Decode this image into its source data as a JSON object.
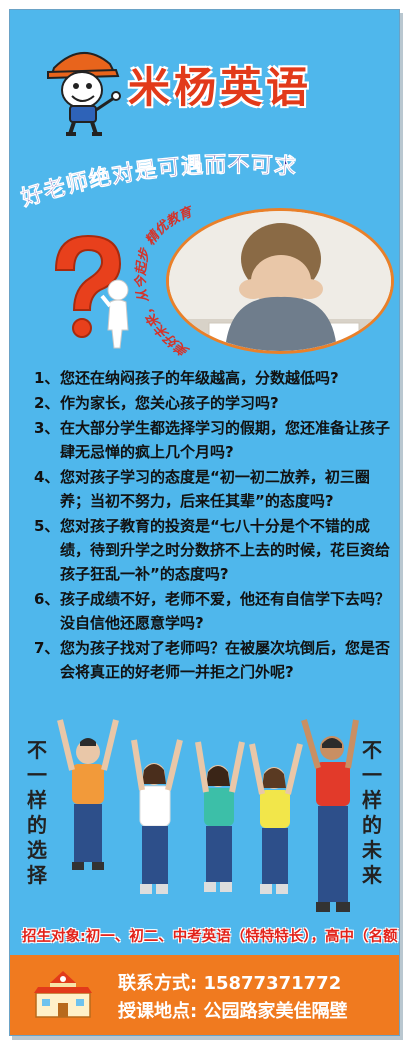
{
  "brand": "米杨英语",
  "slogan": "好老师绝对是可遇而不可求",
  "arc_text": "美好未来，从今起步 精优教育",
  "points": [
    {
      "num": "1、",
      "text": "您还在纳闷孩子的年级越高，分数越低吗?"
    },
    {
      "num": "2、",
      "text": "作为家长，您关心孩子的学习吗?"
    },
    {
      "num": "3、",
      "text": "在大部分学生都选择学习的假期，您还准备让孩子肆无忌惮的疯上几个月吗?"
    },
    {
      "num": "4、",
      "text": "您对孩子学习的态度是“初一初二放养，初三圈养；当初不努力，后来任其辈”的态度吗?"
    },
    {
      "num": "5、",
      "text": "您对孩子教育的投资是“七八十分是个不错的成绩，待到升学之时分数挤不上去的时候，花巨资给孩子狂乱一补”的态度吗?"
    },
    {
      "num": "6、",
      "text": "孩子成绩不好，老师不爱，他还有自信学下去吗？没自信他还愿意学吗?"
    },
    {
      "num": "7、",
      "text": "您为孩子找对了老师吗？在被屡次坑倒后，您是否会将真正的好老师一并拒之门外呢?"
    }
  ],
  "left_vertical": "不一样的选择",
  "right_vertical": "不一样的未来",
  "recruit": "招生对象:初一、初二、中考英语（特特特长），高中（名额已满）",
  "contact": {
    "phone_line": "联系方式: 15877371772",
    "address_line": "授课地点: 公园路家美佳隔壁"
  },
  "colors": {
    "background": "#4fb7ec",
    "brand_red": "#e23a1a",
    "slogan_purple": "#3a1f8f",
    "footer_orange": "#f07a1f"
  }
}
